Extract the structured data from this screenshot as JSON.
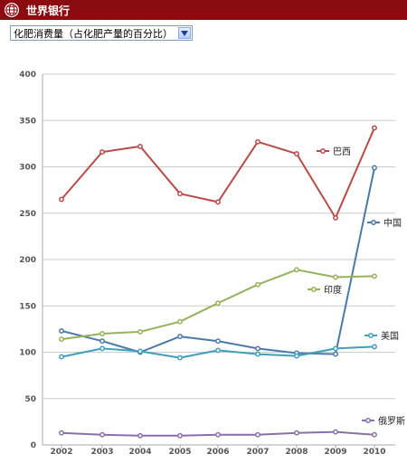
{
  "header": {
    "title": "世界银行"
  },
  "indicator_select": {
    "selected": "化肥消费量（占化肥产量的百分比）"
  },
  "colors": {
    "header_bg": "#8b0b10",
    "grid": "#cccccc",
    "axis": "#aaaaaa"
  },
  "chart_data": {
    "type": "line",
    "title": "",
    "xlabel": "",
    "ylabel": "",
    "x": [
      "2002",
      "2003",
      "2004",
      "2005",
      "2006",
      "2007",
      "2008",
      "2009",
      "2010"
    ],
    "ylim": [
      0,
      400
    ],
    "yticks": [
      "0",
      "50",
      "100",
      "150",
      "200",
      "250",
      "300",
      "350",
      "400"
    ],
    "grid": true,
    "legend_placement": "inline labels at line ends",
    "series": [
      {
        "name": "巴西",
        "color": "#b94a48",
        "values": [
          265,
          316,
          322,
          271,
          262,
          327,
          314,
          245,
          342
        ]
      },
      {
        "name": "中国",
        "color": "#4a7aab",
        "values": [
          123,
          112,
          100,
          117,
          112,
          104,
          99,
          98,
          299
        ]
      },
      {
        "name": "印度",
        "color": "#94b35a",
        "values": [
          114,
          120,
          122,
          133,
          153,
          173,
          189,
          181,
          182
        ]
      },
      {
        "name": "美国",
        "color": "#3ea0bd",
        "values": [
          95,
          104,
          101,
          94,
          102,
          98,
          96,
          104,
          106
        ]
      },
      {
        "name": "俄罗斯",
        "color": "#8a6fa8",
        "values": [
          13,
          11,
          10,
          10,
          11,
          11,
          13,
          14,
          11
        ]
      }
    ]
  }
}
